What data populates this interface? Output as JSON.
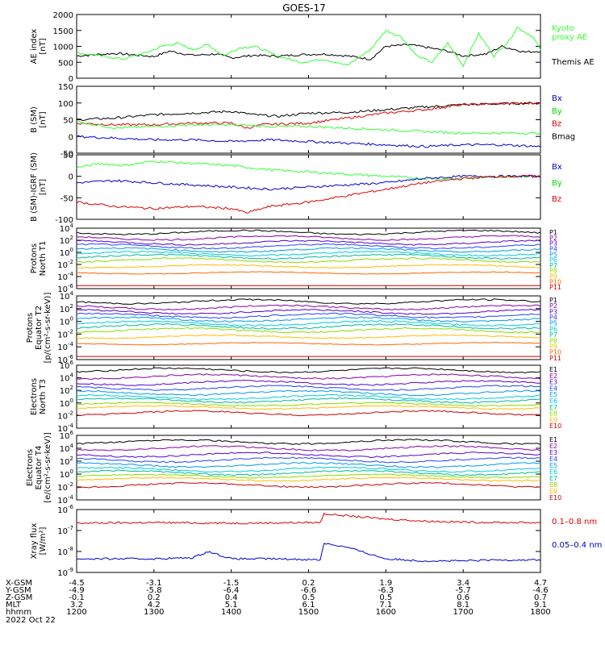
{
  "title": "GOES-17",
  "colors": {
    "black": "#000000",
    "green": "#00dd00",
    "blue": "#0000cc",
    "red": "#dd0000",
    "purple": "#8800aa",
    "violet": "#5500cc",
    "royal": "#2244ff",
    "sky": "#0099ee",
    "cyan": "#00ccdd",
    "teal": "#00bb99",
    "lime": "#88dd00",
    "yellow": "#eeee00",
    "amber": "#ffbb00",
    "orange": "#ff6600",
    "darkred": "#cc0000",
    "bright": "#33ff33"
  },
  "chart_data": [
    {
      "id": "ae",
      "type": "line",
      "scale": "linear",
      "ylabel": "AE index\n[nT]",
      "ylim": [
        0,
        2000
      ],
      "yticks": [
        {
          "v": 0,
          "label": "0"
        },
        {
          "v": 500,
          "label": "500"
        },
        {
          "v": 1000,
          "label": "1000"
        },
        {
          "v": 1500,
          "label": "1500"
        },
        {
          "v": 2000,
          "label": "2000"
        }
      ],
      "series": [
        {
          "name": "Themis AE",
          "color": "black",
          "x": [
            12.0,
            12.5,
            13.0,
            13.2,
            13.5,
            13.8,
            14.0,
            14.3,
            14.6,
            14.9,
            15.2,
            15.5,
            15.8,
            16.0,
            16.3,
            16.5,
            16.8,
            17.0,
            17.3,
            17.5,
            17.8,
            18.0
          ],
          "values": [
            700,
            780,
            680,
            850,
            720,
            760,
            640,
            720,
            690,
            740,
            760,
            700,
            600,
            1000,
            1050,
            980,
            850,
            700,
            760,
            1000,
            820,
            850
          ]
        },
        {
          "name": "Kyoto proxy AE",
          "color": "bright",
          "x": [
            12.0,
            12.3,
            12.6,
            12.9,
            13.1,
            13.3,
            13.5,
            13.7,
            13.9,
            14.1,
            14.3,
            14.6,
            14.9,
            15.2,
            15.5,
            15.8,
            16.0,
            16.2,
            16.4,
            16.6,
            16.8,
            17.0,
            17.2,
            17.4,
            17.6,
            17.7,
            17.9,
            18.0
          ],
          "values": [
            800,
            700,
            600,
            800,
            1000,
            1100,
            900,
            1050,
            700,
            950,
            1000,
            700,
            500,
            600,
            400,
            900,
            1500,
            1300,
            700,
            500,
            1100,
            400,
            1400,
            700,
            1200,
            1600,
            1300,
            900
          ]
        }
      ],
      "legend": [
        {
          "label": "Kyoto\nproxy AE",
          "color": "bright",
          "pos": "top"
        },
        {
          "label": "Themis AE",
          "color": "black",
          "pos": "middle"
        }
      ]
    },
    {
      "id": "bsm",
      "type": "line",
      "scale": "linear",
      "ylabel": "B (SM)\n[nT]",
      "ylim": [
        -50,
        150
      ],
      "yticks": [
        {
          "v": -50,
          "label": "-50"
        },
        {
          "v": 0,
          "label": "0"
        },
        {
          "v": 50,
          "label": "50"
        },
        {
          "v": 100,
          "label": "100"
        },
        {
          "v": 150,
          "label": "150"
        }
      ],
      "series": [
        {
          "name": "Bmag",
          "color": "black",
          "x": [
            12.0,
            12.5,
            13.0,
            13.5,
            14.0,
            14.3,
            14.6,
            15.0,
            15.5,
            16.0,
            16.5,
            17.0,
            17.5,
            18.0
          ],
          "values": [
            50,
            55,
            65,
            70,
            75,
            65,
            60,
            70,
            72,
            80,
            88,
            95,
            98,
            100
          ]
        },
        {
          "name": "Bz",
          "color": "red",
          "x": [
            12.0,
            12.5,
            13.0,
            13.5,
            14.0,
            14.2,
            14.4,
            15.0,
            15.5,
            16.0,
            16.5,
            17.0,
            17.5,
            18.0
          ],
          "values": [
            40,
            35,
            35,
            40,
            40,
            25,
            35,
            40,
            55,
            70,
            80,
            95,
            98,
            100
          ]
        },
        {
          "name": "By",
          "color": "bright",
          "x": [
            12.0,
            12.5,
            13.0,
            13.5,
            14.0,
            14.5,
            15.0,
            15.5,
            16.0,
            16.5,
            17.0,
            17.5,
            18.0
          ],
          "values": [
            45,
            25,
            30,
            35,
            35,
            30,
            30,
            25,
            20,
            15,
            10,
            10,
            10
          ]
        },
        {
          "name": "Bx",
          "color": "blue",
          "x": [
            12.0,
            12.5,
            13.0,
            13.5,
            14.0,
            14.5,
            15.0,
            15.5,
            16.0,
            16.5,
            17.0,
            17.5,
            18.0
          ],
          "values": [
            0,
            -5,
            -10,
            -10,
            -15,
            -10,
            -15,
            -20,
            -25,
            -30,
            -25,
            -25,
            -30
          ]
        }
      ],
      "legend": [
        {
          "label": "Bx",
          "color": "blue"
        },
        {
          "label": "By",
          "color": "green"
        },
        {
          "label": "Bz",
          "color": "red"
        },
        {
          "label": "Bmag",
          "color": "black"
        }
      ]
    },
    {
      "id": "bigrf",
      "type": "line",
      "scale": "linear",
      "ylabel": "B (SM)-IGRF (SM)\n[nT]",
      "ylim": [
        -100,
        50
      ],
      "yticks": [
        {
          "v": -100,
          "label": "-100"
        },
        {
          "v": -50,
          "label": "-50"
        },
        {
          "v": 0,
          "label": "0"
        },
        {
          "v": 50,
          "label": "50"
        }
      ],
      "series": [
        {
          "name": "By",
          "color": "bright",
          "x": [
            12.0,
            12.3,
            12.6,
            13.0,
            13.5,
            14.0,
            14.5,
            15.0,
            15.5,
            16.0,
            16.5,
            17.0,
            17.5,
            18.0
          ],
          "values": [
            20,
            30,
            25,
            35,
            30,
            25,
            15,
            10,
            5,
            0,
            -5,
            -5,
            0,
            0
          ]
        },
        {
          "name": "Bx",
          "color": "blue",
          "x": [
            12.0,
            12.5,
            13.0,
            13.5,
            14.0,
            14.5,
            15.0,
            15.5,
            16.0,
            16.5,
            17.0,
            17.5,
            18.0
          ],
          "values": [
            -15,
            -10,
            -15,
            -20,
            -25,
            -30,
            -25,
            -20,
            -15,
            -5,
            0,
            0,
            0
          ]
        },
        {
          "name": "Bz",
          "color": "red",
          "x": [
            12.0,
            12.5,
            13.0,
            13.5,
            14.0,
            14.2,
            14.5,
            15.0,
            15.5,
            16.0,
            16.5,
            17.0,
            17.5,
            18.0
          ],
          "values": [
            -60,
            -70,
            -75,
            -70,
            -75,
            -85,
            -70,
            -60,
            -45,
            -30,
            -15,
            -5,
            0,
            0
          ]
        }
      ],
      "legend": [
        {
          "label": "Bx",
          "color": "blue"
        },
        {
          "label": "By",
          "color": "green"
        },
        {
          "label": "Bz",
          "color": "red"
        }
      ]
    },
    {
      "id": "pn",
      "type": "line",
      "scale": "log",
      "ylabel": "Protons\nNorth T1",
      "ylim_exp": [
        -6,
        4
      ],
      "yticks": [
        {
          "e": 4
        },
        {
          "e": 2
        },
        {
          "e": 0
        },
        {
          "e": -2
        },
        {
          "e": -4
        },
        {
          "e": -6
        }
      ],
      "series": [
        {
          "name": "P1",
          "color": "black",
          "base": 3.3,
          "amp": 0.4
        },
        {
          "name": "P2",
          "color": "purple",
          "base": 2.4,
          "amp": 0.4
        },
        {
          "name": "P3",
          "color": "violet",
          "base": 1.6,
          "amp": 0.4
        },
        {
          "name": "P4",
          "color": "royal",
          "base": 1.0,
          "amp": 0.4
        },
        {
          "name": "P5",
          "color": "sky",
          "base": 0.4,
          "amp": 0.4
        },
        {
          "name": "P6",
          "color": "cyan",
          "base": -0.2,
          "amp": 0.4
        },
        {
          "name": "P7",
          "color": "teal",
          "base": -0.7,
          "amp": 0.4
        },
        {
          "name": "P8",
          "color": "lime",
          "base": -1.3,
          "amp": 0.4
        },
        {
          "name": "P9",
          "color": "amber",
          "base": -2.3,
          "amp": 0.3
        },
        {
          "name": "P10",
          "color": "orange",
          "base": -3.4,
          "amp": 0.2
        },
        {
          "name": "P11",
          "color": "darkred",
          "base": -5.5,
          "amp": 0.0
        }
      ]
    },
    {
      "id": "pe",
      "type": "line",
      "scale": "log",
      "ylabel": "Protons\nEquator T2\n[p/(cm²-s-sr-keV)]",
      "ylim_exp": [
        -6,
        4
      ],
      "yticks": [
        {
          "e": 4
        },
        {
          "e": 2
        },
        {
          "e": 0
        },
        {
          "e": -2
        },
        {
          "e": -4
        },
        {
          "e": -6
        }
      ],
      "series": [
        {
          "name": "P1",
          "color": "black",
          "base": 3.1,
          "amp": 0.4
        },
        {
          "name": "P2",
          "color": "purple",
          "base": 2.2,
          "amp": 0.4
        },
        {
          "name": "P3",
          "color": "violet",
          "base": 1.5,
          "amp": 0.4
        },
        {
          "name": "P4",
          "color": "royal",
          "base": 0.9,
          "amp": 0.4
        },
        {
          "name": "P5",
          "color": "sky",
          "base": 0.3,
          "amp": 0.4
        },
        {
          "name": "P6",
          "color": "cyan",
          "base": -0.3,
          "amp": 0.4
        },
        {
          "name": "P7",
          "color": "teal",
          "base": -0.8,
          "amp": 0.4
        },
        {
          "name": "P8",
          "color": "lime",
          "base": -1.4,
          "amp": 0.4
        },
        {
          "name": "P9",
          "color": "amber",
          "base": -2.4,
          "amp": 0.3
        },
        {
          "name": "P10",
          "color": "orange",
          "base": -3.5,
          "amp": 0.2
        },
        {
          "name": "P11",
          "color": "darkred",
          "base": -5.5,
          "amp": 0.0
        }
      ]
    },
    {
      "id": "en",
      "type": "line",
      "scale": "log",
      "ylabel": "Electrons\nNorth T3",
      "ylim_exp": [
        -4,
        6
      ],
      "yticks": [
        {
          "e": 6
        },
        {
          "e": 4
        },
        {
          "e": 2
        },
        {
          "e": 0
        },
        {
          "e": -2
        },
        {
          "e": -4
        }
      ],
      "series": [
        {
          "name": "E1",
          "color": "black",
          "base": 5.2,
          "amp": 0.4
        },
        {
          "name": "E2",
          "color": "purple",
          "base": 4.2,
          "amp": 0.4
        },
        {
          "name": "E3",
          "color": "violet",
          "base": 3.2,
          "amp": 0.4
        },
        {
          "name": "E4",
          "color": "royal",
          "base": 2.4,
          "amp": 0.4
        },
        {
          "name": "E5",
          "color": "sky",
          "base": 1.6,
          "amp": 0.4
        },
        {
          "name": "E6",
          "color": "cyan",
          "base": 0.9,
          "amp": 0.4
        },
        {
          "name": "E7",
          "color": "teal",
          "base": 0.4,
          "amp": 0.4
        },
        {
          "name": "E8",
          "color": "lime",
          "base": -0.2,
          "amp": 0.3
        },
        {
          "name": "E9",
          "color": "amber",
          "base": -0.7,
          "amp": 0.3
        },
        {
          "name": "E10",
          "color": "darkred",
          "base": -1.6,
          "amp": 0.4
        }
      ]
    },
    {
      "id": "ee",
      "type": "line",
      "scale": "log",
      "ylabel": "Electrons\nEquator T4\n[e/(cm²-s-sr-keV)]",
      "ylim_exp": [
        -4,
        6
      ],
      "yticks": [
        {
          "e": 6
        },
        {
          "e": 4
        },
        {
          "e": 2
        },
        {
          "e": 0
        },
        {
          "e": -2
        },
        {
          "e": -4
        }
      ],
      "series": [
        {
          "name": "E1",
          "color": "black",
          "base": 5.0,
          "amp": 0.4
        },
        {
          "name": "E2",
          "color": "purple",
          "base": 4.0,
          "amp": 0.4
        },
        {
          "name": "E3",
          "color": "violet",
          "base": 3.0,
          "amp": 0.4
        },
        {
          "name": "E4",
          "color": "royal",
          "base": 2.2,
          "amp": 0.4
        },
        {
          "name": "E5",
          "color": "sky",
          "base": 1.4,
          "amp": 0.4
        },
        {
          "name": "E6",
          "color": "cyan",
          "base": 0.7,
          "amp": 0.4
        },
        {
          "name": "E7",
          "color": "teal",
          "base": 0.2,
          "amp": 0.4
        },
        {
          "name": "E8",
          "color": "lime",
          "base": -0.3,
          "amp": 0.3
        },
        {
          "name": "E9",
          "color": "amber",
          "base": -0.8,
          "amp": 0.3
        },
        {
          "name": "E10",
          "color": "darkred",
          "base": -1.7,
          "amp": 0.4
        }
      ]
    },
    {
      "id": "xray",
      "type": "line",
      "scale": "log",
      "ylabel": "Xray flux\n[W/m²]",
      "ylim_exp": [
        -9,
        -6
      ],
      "yticks": [
        {
          "e": -6
        },
        {
          "e": -7
        },
        {
          "e": -8
        },
        {
          "e": -9
        }
      ],
      "series": [
        {
          "name": "0.1-0.8 nm",
          "color": "red",
          "x": [
            12.0,
            13.0,
            14.0,
            15.0,
            15.15,
            15.2,
            15.5,
            16.0,
            16.5,
            17.0,
            17.5,
            18.0
          ],
          "values": [
            -6.65,
            -6.62,
            -6.65,
            -6.62,
            -6.62,
            -6.2,
            -6.3,
            -6.45,
            -6.55,
            -6.6,
            -6.62,
            -6.62
          ]
        },
        {
          "name": "0.05-0.4 nm",
          "color": "blue",
          "x": [
            12.0,
            12.5,
            13.0,
            13.5,
            13.7,
            14.0,
            14.5,
            15.0,
            15.15,
            15.2,
            15.5,
            16.0,
            16.5,
            17.0,
            17.5,
            18.0
          ],
          "values": [
            -8.35,
            -8.35,
            -8.35,
            -8.3,
            -8.0,
            -8.35,
            -8.35,
            -8.38,
            -8.4,
            -7.6,
            -7.8,
            -8.35,
            -8.45,
            -8.45,
            -8.4,
            -8.4
          ]
        }
      ],
      "legend": [
        {
          "label": "0.1–0.8 nm",
          "color": "red"
        },
        {
          "label": "0.05–0.4 nm",
          "color": "blue"
        }
      ]
    }
  ],
  "x_axis": {
    "xlim": [
      12.0,
      18.0
    ],
    "row_labels": [
      "X-GSM",
      "Y-GSM",
      "Z-GSM",
      "MLT",
      "hhmm",
      "2022 Oct 22"
    ],
    "columns": [
      {
        "x": 12.0,
        "values": [
          "-4.5",
          "-4.9",
          "-0.1",
          "3.2",
          "1200"
        ]
      },
      {
        "x": 13.0,
        "values": [
          "-3.1",
          "-5.8",
          "0.2",
          "4.2",
          "1300"
        ]
      },
      {
        "x": 14.0,
        "values": [
          "-1.5",
          "-6.4",
          "0.4",
          "5.1",
          "1400"
        ]
      },
      {
        "x": 15.0,
        "values": [
          "0.2",
          "-6.6",
          "0.5",
          "6.1",
          "1500"
        ]
      },
      {
        "x": 16.0,
        "values": [
          "1.9",
          "-6.3",
          "0.5",
          "7.1",
          "1600"
        ]
      },
      {
        "x": 17.0,
        "values": [
          "3.4",
          "-5.7",
          "0.6",
          "8.1",
          "1700"
        ]
      },
      {
        "x": 18.0,
        "values": [
          "4.7",
          "-4.6",
          "0.7",
          "9.1",
          "1800"
        ]
      }
    ]
  }
}
